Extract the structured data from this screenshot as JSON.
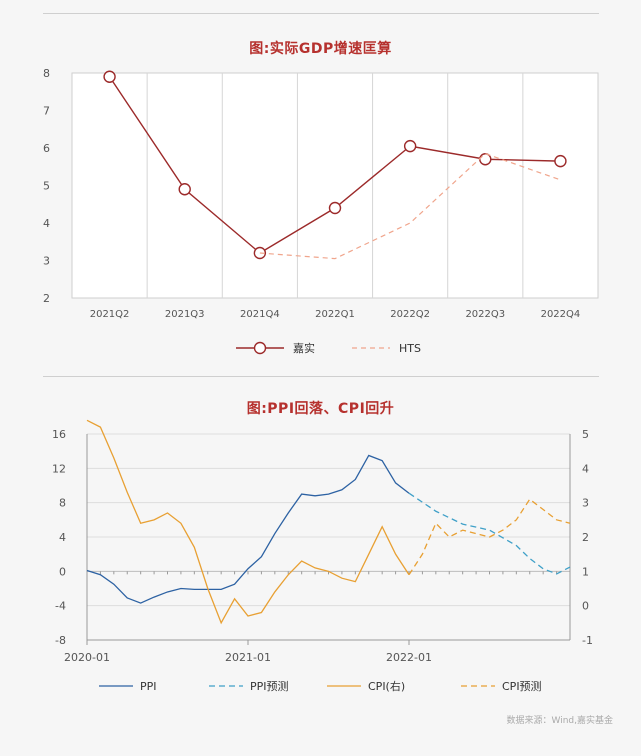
{
  "chart_data": [
    {
      "type": "line",
      "title": "图:实际GDP增速匡算",
      "categories": [
        "2021Q2",
        "2021Q3",
        "2021Q4",
        "2022Q1",
        "2022Q2",
        "2022Q3",
        "2022Q4"
      ],
      "ylim": [
        2,
        8
      ],
      "yticks": [
        2,
        3,
        4,
        5,
        6,
        7,
        8
      ],
      "series": [
        {
          "name": "嘉实",
          "values": [
            7.9,
            4.9,
            3.2,
            4.4,
            6.05,
            5.7,
            5.65
          ],
          "color": "#9c2a2a",
          "style": "solid-markers"
        },
        {
          "name": "HTS",
          "values": [
            null,
            null,
            3.2,
            3.05,
            4.0,
            5.85,
            5.15
          ],
          "color": "#f0a58c",
          "style": "dashed"
        }
      ]
    },
    {
      "type": "line",
      "title": "图:PPI回落、CPI回升",
      "xlabels": [
        "2020-01",
        "2021-01",
        "2022-01"
      ],
      "x_range": [
        0,
        36
      ],
      "y_left": {
        "lim": [
          -8,
          16
        ],
        "ticks": [
          16,
          12,
          8,
          4,
          0,
          -4,
          -8
        ]
      },
      "y_right": {
        "lim": [
          -1,
          5
        ],
        "ticks": [
          5,
          4,
          3,
          2,
          1,
          0,
          -1
        ]
      },
      "series": [
        {
          "name": "PPI",
          "axis": "left",
          "color": "#2d62a3",
          "style": "solid",
          "x": [
            0,
            1,
            2,
            3,
            4,
            5,
            6,
            7,
            8,
            9,
            10,
            11,
            12,
            13,
            14,
            15,
            16,
            17,
            18,
            19,
            20,
            21,
            22,
            23,
            24
          ],
          "values": [
            0.1,
            -0.4,
            -1.5,
            -3.1,
            -3.7,
            -3.0,
            -2.4,
            -2.0,
            -2.1,
            -2.1,
            -2.1,
            -1.5,
            0.3,
            1.7,
            4.4,
            6.8,
            9.0,
            8.8,
            9.0,
            9.5,
            10.7,
            13.5,
            12.9,
            10.3,
            9.1
          ]
        },
        {
          "name": "PPI预测",
          "axis": "left",
          "color": "#3fa0c8",
          "style": "dashed",
          "x": [
            24,
            26,
            28,
            30,
            32,
            33,
            34,
            35,
            36
          ],
          "values": [
            9.1,
            7.0,
            5.5,
            4.8,
            3.0,
            1.5,
            0.3,
            -0.3,
            0.5
          ]
        },
        {
          "name": "CPI(右)",
          "axis": "right",
          "color": "#e8a033",
          "style": "solid",
          "x": [
            0,
            1,
            2,
            3,
            4,
            5,
            6,
            7,
            8,
            9,
            10,
            11,
            12,
            13,
            14,
            15,
            16,
            17,
            18,
            19,
            20,
            21,
            22,
            23,
            24
          ],
          "values": [
            5.4,
            5.2,
            4.3,
            3.3,
            2.4,
            2.5,
            2.7,
            2.4,
            1.7,
            0.5,
            -0.5,
            0.2,
            -0.3,
            -0.2,
            0.4,
            0.9,
            1.3,
            1.1,
            1.0,
            0.8,
            0.7,
            1.5,
            2.3,
            1.5,
            0.9
          ]
        },
        {
          "name": "CPI预测",
          "axis": "right",
          "color": "#e8a033",
          "style": "dashed",
          "x": [
            24,
            25,
            26,
            27,
            28,
            29,
            30,
            31,
            32,
            33,
            34,
            35,
            36
          ],
          "values": [
            0.9,
            1.5,
            2.4,
            2.0,
            2.2,
            2.1,
            2.0,
            2.2,
            2.5,
            3.1,
            2.8,
            2.5,
            2.4
          ]
        }
      ]
    }
  ],
  "source": "数据来源：Wind,嘉实基金"
}
